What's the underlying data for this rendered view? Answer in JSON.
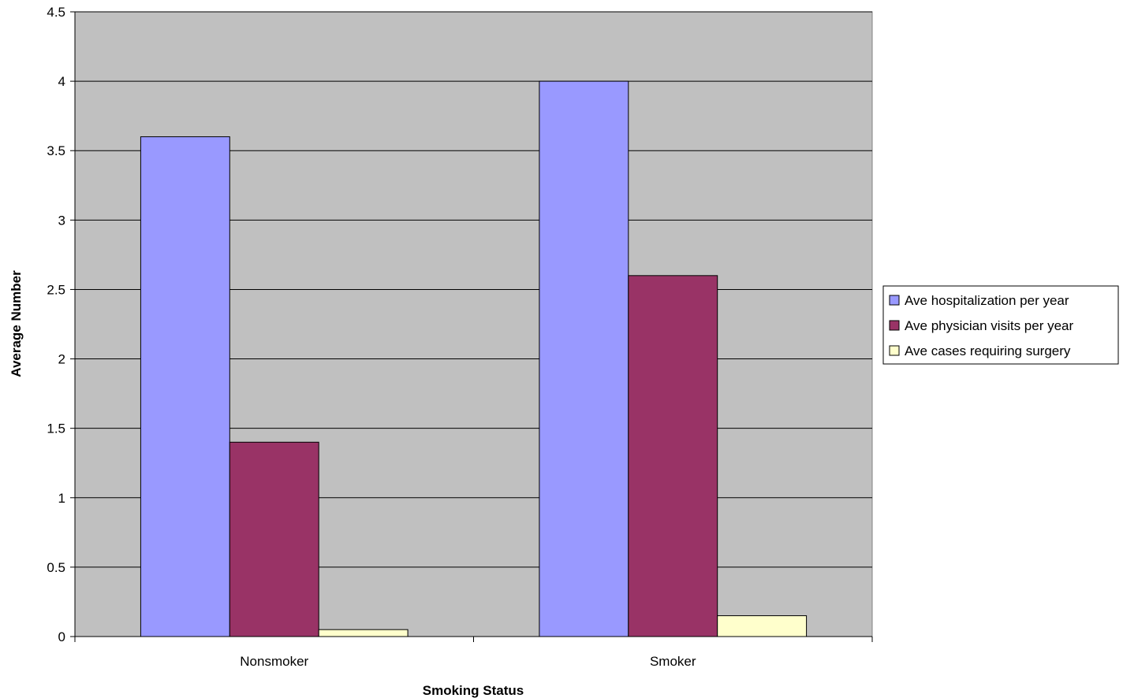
{
  "chart_data": {
    "type": "bar",
    "title": "",
    "xlabel": "Smoking Status",
    "ylabel": "Average Number",
    "categories": [
      "Nonsmoker",
      "Smoker"
    ],
    "series": [
      {
        "name": "Ave hospitalization per year",
        "values": [
          3.6,
          4.0
        ],
        "color": "#9999ff"
      },
      {
        "name": "Ave physician visits per year",
        "values": [
          1.4,
          2.6
        ],
        "color": "#993366"
      },
      {
        "name": "Ave cases requiring surgery",
        "values": [
          0.05,
          0.15
        ],
        "color": "#ffffcc"
      }
    ],
    "ylim": [
      0,
      4.5
    ],
    "yticks": [
      "0",
      "0.5",
      "1",
      "1.5",
      "2",
      "2.5",
      "3",
      "3.5",
      "4",
      "4.5"
    ],
    "grid": true,
    "plot_background": "#c0c0c0",
    "legend_position": "right"
  }
}
